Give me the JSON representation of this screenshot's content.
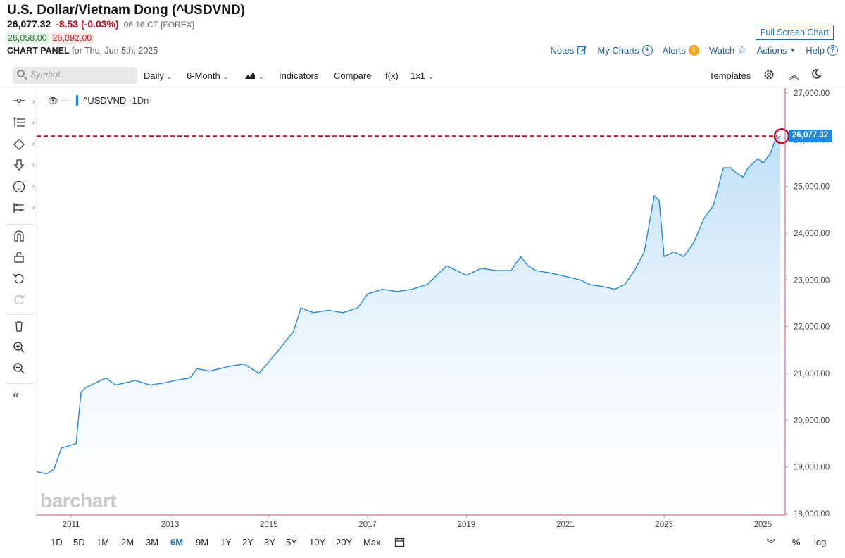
{
  "header": {
    "title": "U.S. Dollar/Vietnam Dong (^USDVND)",
    "last": "26,077.32",
    "change": "-8.53 (-0.03%)",
    "time": "06:16 CT [FOREX]",
    "bid": "26,058.00",
    "ask": "26,092.00",
    "panel_label": "CHART PANEL",
    "panel_date": "for Thu, Jun 5th, 2025",
    "fullscreen_label": "Full Screen Chart",
    "links": {
      "notes": "Notes",
      "my_charts": "My Charts",
      "alerts": "Alerts",
      "watch": "Watch",
      "actions": "Actions",
      "help": "Help"
    }
  },
  "toolbar": {
    "search_placeholder": "Symbol...",
    "interval": "Daily",
    "period": "6-Month",
    "indicators": "Indicators",
    "compare": "Compare",
    "fx": "f(x)",
    "layout": "1x1",
    "templates": "Templates"
  },
  "legend": {
    "symbol": "^USDVND",
    "interval": "·1Dn·"
  },
  "watermark": "barchart",
  "price_tag": "26,077.32",
  "range_buttons": [
    "1D",
    "5D",
    "1M",
    "2M",
    "3M",
    "6M",
    "9M",
    "1Y",
    "2Y",
    "3Y",
    "5Y",
    "10Y",
    "20Y",
    "Max"
  ],
  "active_range": "6M",
  "scale_buttons": {
    "percent": "%",
    "log": "log"
  },
  "colors": {
    "line": "#1e88e5",
    "area_top": "#b9dcf7",
    "last_price_line": "#d0021b",
    "accent": "#1a6fb0"
  },
  "chart_data": {
    "type": "area",
    "title": "U.S. Dollar/Vietnam Dong (^USDVND)",
    "xlabel": "",
    "ylabel": "",
    "ylim": [
      18000,
      27000
    ],
    "yticks": [
      "27,000.00",
      "26,000.00",
      "25,000.00",
      "24,000.00",
      "23,000.00",
      "22,000.00",
      "21,000.00",
      "20,000.00",
      "19,000.00",
      "18,000.00"
    ],
    "xticks": [
      "2011",
      "2013",
      "2015",
      "2017",
      "2019",
      "2021",
      "2023",
      "2025"
    ],
    "last_price": 26077.32,
    "series": [
      {
        "name": "^USDVND",
        "x": [
          2010.3,
          2010.5,
          2010.65,
          2010.8,
          2010.95,
          2011.1,
          2011.2,
          2011.3,
          2011.5,
          2011.7,
          2011.9,
          2012.1,
          2012.3,
          2012.6,
          2012.9,
          2013.1,
          2013.4,
          2013.55,
          2013.8,
          2014.0,
          2014.2,
          2014.5,
          2014.8,
          2015.0,
          2015.2,
          2015.5,
          2015.65,
          2015.9,
          2016.2,
          2016.5,
          2016.8,
          2017.0,
          2017.3,
          2017.6,
          2017.9,
          2018.2,
          2018.4,
          2018.6,
          2018.8,
          2019.0,
          2019.3,
          2019.6,
          2019.9,
          2020.1,
          2020.25,
          2020.4,
          2020.7,
          2020.9,
          2021.1,
          2021.3,
          2021.5,
          2021.8,
          2022.0,
          2022.2,
          2022.4,
          2022.6,
          2022.8,
          2022.9,
          2023.0,
          2023.2,
          2023.4,
          2023.6,
          2023.8,
          2024.0,
          2024.2,
          2024.35,
          2024.45,
          2024.6,
          2024.7,
          2024.9,
          2025.0,
          2025.15,
          2025.25,
          2025.35
        ],
        "values": [
          18900,
          18850,
          18950,
          19400,
          19450,
          19500,
          20600,
          20700,
          20800,
          20900,
          20750,
          20800,
          20850,
          20750,
          20800,
          20850,
          20900,
          21100,
          21050,
          21100,
          21150,
          21200,
          21000,
          21250,
          21500,
          21900,
          22400,
          22300,
          22350,
          22300,
          22400,
          22700,
          22800,
          22750,
          22800,
          22900,
          23100,
          23300,
          23200,
          23100,
          23250,
          23200,
          23200,
          23500,
          23300,
          23200,
          23150,
          23100,
          23050,
          23000,
          22900,
          22850,
          22800,
          22900,
          23200,
          23600,
          24800,
          24700,
          23500,
          23600,
          23500,
          23800,
          24300,
          24600,
          25400,
          25400,
          25300,
          25200,
          25400,
          25600,
          25500,
          25700,
          26000,
          26077
        ]
      }
    ]
  }
}
